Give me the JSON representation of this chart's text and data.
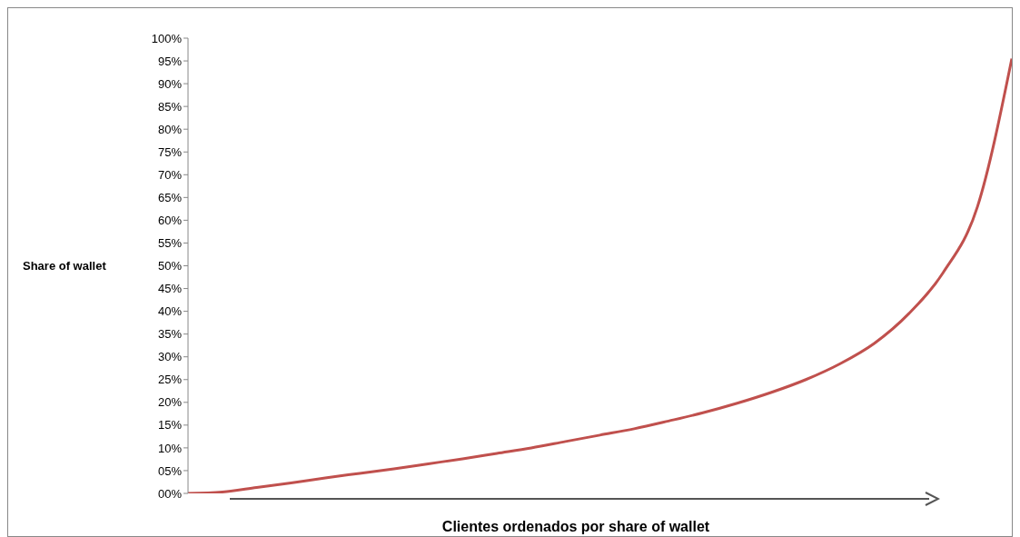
{
  "chart_data": {
    "type": "line",
    "ylabel": "Share of wallet",
    "xlabel": "Clientes ordenados por share of wallet",
    "categories": [
      null,
      null,
      null,
      null,
      null,
      null,
      null,
      null,
      null,
      null,
      null,
      null,
      null,
      null,
      null,
      null,
      null,
      null,
      null,
      null,
      null,
      null,
      null,
      null,
      null
    ],
    "series": [
      {
        "color": "#c0504d",
        "values": [
          0,
          0.3,
          1.3,
          2.3,
          3.4,
          4.4,
          5.4,
          6.5,
          7.6,
          8.8,
          10,
          11.4,
          12.8,
          14.2,
          15.9,
          17.7,
          19.8,
          22.2,
          25,
          28.5,
          33,
          39.5,
          48.5,
          63,
          95.5
        ]
      }
    ],
    "ylim": [
      0,
      100
    ],
    "yticks": [
      {
        "value": 0,
        "label": "00%"
      },
      {
        "value": 5,
        "label": "05%"
      },
      {
        "value": 10,
        "label": "10%"
      },
      {
        "value": 15,
        "label": "15%"
      },
      {
        "value": 20,
        "label": "20%"
      },
      {
        "value": 25,
        "label": "25%"
      },
      {
        "value": 30,
        "label": "30%"
      },
      {
        "value": 35,
        "label": "35%"
      },
      {
        "value": 40,
        "label": "40%"
      },
      {
        "value": 45,
        "label": "45%"
      },
      {
        "value": 50,
        "label": "50%"
      },
      {
        "value": 55,
        "label": "55%"
      },
      {
        "value": 60,
        "label": "60%"
      },
      {
        "value": 65,
        "label": "65%"
      },
      {
        "value": 70,
        "label": "70%"
      },
      {
        "value": 75,
        "label": "75%"
      },
      {
        "value": 80,
        "label": "80%"
      },
      {
        "value": 85,
        "label": "85%"
      },
      {
        "value": 90,
        "label": "90%"
      },
      {
        "value": 95,
        "label": "95%"
      },
      {
        "value": 100,
        "label": "100%"
      }
    ],
    "grid": false,
    "legend": false,
    "tick_labels": "y"
  }
}
